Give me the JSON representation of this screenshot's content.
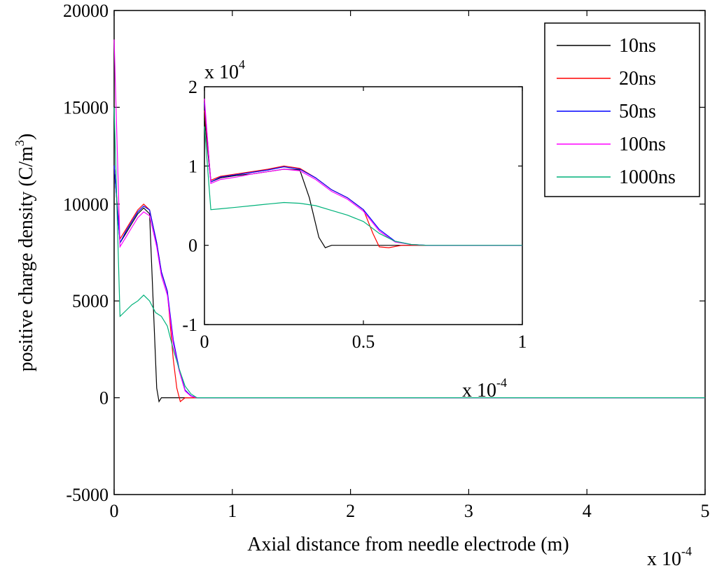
{
  "chart_data": {
    "type": "line",
    "xlabel": "Axial distance from needle electrode (m)",
    "ylabel": "positive charge density (C/m",
    "ylabel_superscript": "3",
    "ylabel_suffix": ")",
    "x_multiplier": {
      "base": "x 10",
      "exponent": "-4"
    },
    "xlim": [
      0,
      5
    ],
    "ylim": [
      -5000,
      20000
    ],
    "x_ticks": [
      {
        "value": 0,
        "label": "0"
      },
      {
        "value": 1,
        "label": "1"
      },
      {
        "value": 2,
        "label": "2"
      },
      {
        "value": 3,
        "label": "3"
      },
      {
        "value": 4,
        "label": "4"
      },
      {
        "value": 5,
        "label": "5"
      }
    ],
    "y_ticks": [
      {
        "value": -5000,
        "label": "-5000"
      },
      {
        "value": 0,
        "label": "0"
      },
      {
        "value": 5000,
        "label": "5000"
      },
      {
        "value": 10000,
        "label": "10000"
      },
      {
        "value": 15000,
        "label": "15000"
      },
      {
        "value": 20000,
        "label": "20000"
      }
    ],
    "legend": {
      "placement": "top-right",
      "entries": [
        {
          "label": "10ns",
          "color": "#000000"
        },
        {
          "label": "20ns",
          "color": "#ff0000"
        },
        {
          "label": "50ns",
          "color": "#0000ff"
        },
        {
          "label": "100ns",
          "color": "#ff00ff"
        },
        {
          "label": "1000ns",
          "color": "#00b27a"
        }
      ]
    },
    "series": [
      {
        "name": "10ns",
        "color": "#000000",
        "x": [
          0,
          0.05,
          0.1,
          0.15,
          0.2,
          0.25,
          0.3,
          0.33,
          0.36,
          0.38,
          0.4,
          0.45,
          0.5,
          1,
          2,
          3,
          4,
          5
        ],
        "y": [
          12000,
          8000,
          8500,
          9000,
          9500,
          9800,
          9500,
          5000,
          500,
          -200,
          0,
          0,
          0,
          0,
          0,
          0,
          0,
          0
        ]
      },
      {
        "name": "20ns",
        "color": "#ff0000",
        "x": [
          0,
          0.05,
          0.1,
          0.15,
          0.2,
          0.25,
          0.3,
          0.36,
          0.4,
          0.45,
          0.5,
          0.53,
          0.56,
          0.6,
          0.7,
          1,
          2,
          3,
          4,
          5
        ],
        "y": [
          12000,
          8200,
          8700,
          9200,
          9700,
          10000,
          9700,
          8000,
          6500,
          5500,
          2000,
          500,
          -200,
          0,
          0,
          0,
          0,
          0,
          0,
          0
        ]
      },
      {
        "name": "50ns",
        "color": "#0000ff",
        "x": [
          0,
          0.05,
          0.1,
          0.15,
          0.2,
          0.25,
          0.3,
          0.36,
          0.4,
          0.45,
          0.5,
          0.55,
          0.6,
          0.65,
          0.7,
          1,
          2,
          3,
          4,
          5
        ],
        "y": [
          12000,
          8000,
          8600,
          9100,
          9600,
          9900,
          9700,
          8000,
          6500,
          5500,
          3000,
          1500,
          400,
          100,
          0,
          0,
          0,
          0,
          0,
          0
        ]
      },
      {
        "name": "100ns",
        "color": "#ff00ff",
        "x": [
          0,
          0.05,
          0.1,
          0.15,
          0.2,
          0.25,
          0.3,
          0.36,
          0.4,
          0.45,
          0.5,
          0.55,
          0.6,
          0.65,
          0.7,
          1,
          2,
          3,
          4,
          5
        ],
        "y": [
          18500,
          7800,
          8300,
          8800,
          9300,
          9600,
          9400,
          7800,
          6300,
          5300,
          2800,
          1400,
          350,
          80,
          0,
          0,
          0,
          0,
          0,
          0
        ]
      },
      {
        "name": "1000ns",
        "color": "#00b27a",
        "x": [
          0,
          0.05,
          0.1,
          0.15,
          0.2,
          0.25,
          0.3,
          0.35,
          0.4,
          0.45,
          0.5,
          0.55,
          0.6,
          0.65,
          0.7,
          1,
          2,
          3,
          4,
          5
        ],
        "y": [
          15000,
          4200,
          4500,
          4800,
          5000,
          5300,
          5000,
          4400,
          4200,
          3700,
          2500,
          1500,
          600,
          200,
          0,
          0,
          0,
          0,
          0,
          0
        ]
      }
    ],
    "inset": {
      "type": "line",
      "xlim": [
        0,
        1
      ],
      "ylim": [
        -1,
        2
      ],
      "x_multiplier": {
        "base": "x 10",
        "exponent": "-4"
      },
      "y_multiplier": {
        "base": "x 10",
        "exponent": "4"
      },
      "x_ticks": [
        {
          "value": 0,
          "label": "0"
        },
        {
          "value": 0.5,
          "label": "0.5"
        },
        {
          "value": 1,
          "label": "1"
        }
      ],
      "y_ticks": [
        {
          "value": -1,
          "label": "-1"
        },
        {
          "value": 0,
          "label": "0"
        },
        {
          "value": 1,
          "label": "1"
        },
        {
          "value": 2,
          "label": "2"
        }
      ],
      "series": [
        {
          "name": "10ns",
          "color": "#000000",
          "x": [
            0,
            0.02,
            0.05,
            0.1,
            0.15,
            0.2,
            0.25,
            0.3,
            0.33,
            0.36,
            0.38,
            0.4,
            0.5,
            0.6,
            0.7,
            0.8,
            0.9,
            1
          ],
          "y": [
            1.6,
            0.8,
            0.85,
            0.88,
            0.9,
            0.93,
            0.96,
            0.95,
            0.6,
            0.1,
            -0.03,
            0,
            0,
            0,
            0,
            0,
            0,
            0
          ]
        },
        {
          "name": "20ns",
          "color": "#ff0000",
          "x": [
            0,
            0.02,
            0.05,
            0.1,
            0.15,
            0.2,
            0.25,
            0.3,
            0.35,
            0.4,
            0.45,
            0.5,
            0.53,
            0.55,
            0.58,
            0.62,
            0.7,
            0.8,
            0.9,
            1
          ],
          "y": [
            1.7,
            0.82,
            0.87,
            0.9,
            0.93,
            0.96,
            1.0,
            0.97,
            0.85,
            0.7,
            0.6,
            0.45,
            0.15,
            -0.02,
            -0.03,
            0,
            0,
            0,
            0,
            0
          ]
        },
        {
          "name": "50ns",
          "color": "#0000ff",
          "x": [
            0,
            0.02,
            0.05,
            0.1,
            0.15,
            0.2,
            0.25,
            0.3,
            0.35,
            0.4,
            0.45,
            0.5,
            0.55,
            0.6,
            0.65,
            0.7,
            0.8,
            0.9,
            1
          ],
          "y": [
            1.8,
            0.8,
            0.86,
            0.89,
            0.92,
            0.95,
            0.99,
            0.96,
            0.85,
            0.7,
            0.6,
            0.45,
            0.2,
            0.05,
            0.01,
            0,
            0,
            0,
            0
          ]
        },
        {
          "name": "100ns",
          "color": "#ff00ff",
          "x": [
            0,
            0.02,
            0.05,
            0.1,
            0.15,
            0.2,
            0.25,
            0.3,
            0.35,
            0.4,
            0.45,
            0.5,
            0.55,
            0.6,
            0.65,
            0.7,
            0.8,
            0.9,
            1
          ],
          "y": [
            1.85,
            0.78,
            0.83,
            0.86,
            0.9,
            0.93,
            0.96,
            0.94,
            0.83,
            0.68,
            0.58,
            0.43,
            0.18,
            0.04,
            0.01,
            0,
            0,
            0,
            0
          ]
        },
        {
          "name": "1000ns",
          "color": "#00b27a",
          "x": [
            0,
            0.02,
            0.05,
            0.1,
            0.15,
            0.2,
            0.25,
            0.3,
            0.35,
            0.4,
            0.45,
            0.5,
            0.55,
            0.6,
            0.65,
            0.7,
            0.8,
            0.9,
            1
          ],
          "y": [
            1.5,
            0.45,
            0.46,
            0.48,
            0.5,
            0.52,
            0.54,
            0.53,
            0.5,
            0.44,
            0.38,
            0.3,
            0.15,
            0.05,
            0.01,
            0,
            0,
            0,
            0
          ]
        }
      ]
    }
  }
}
